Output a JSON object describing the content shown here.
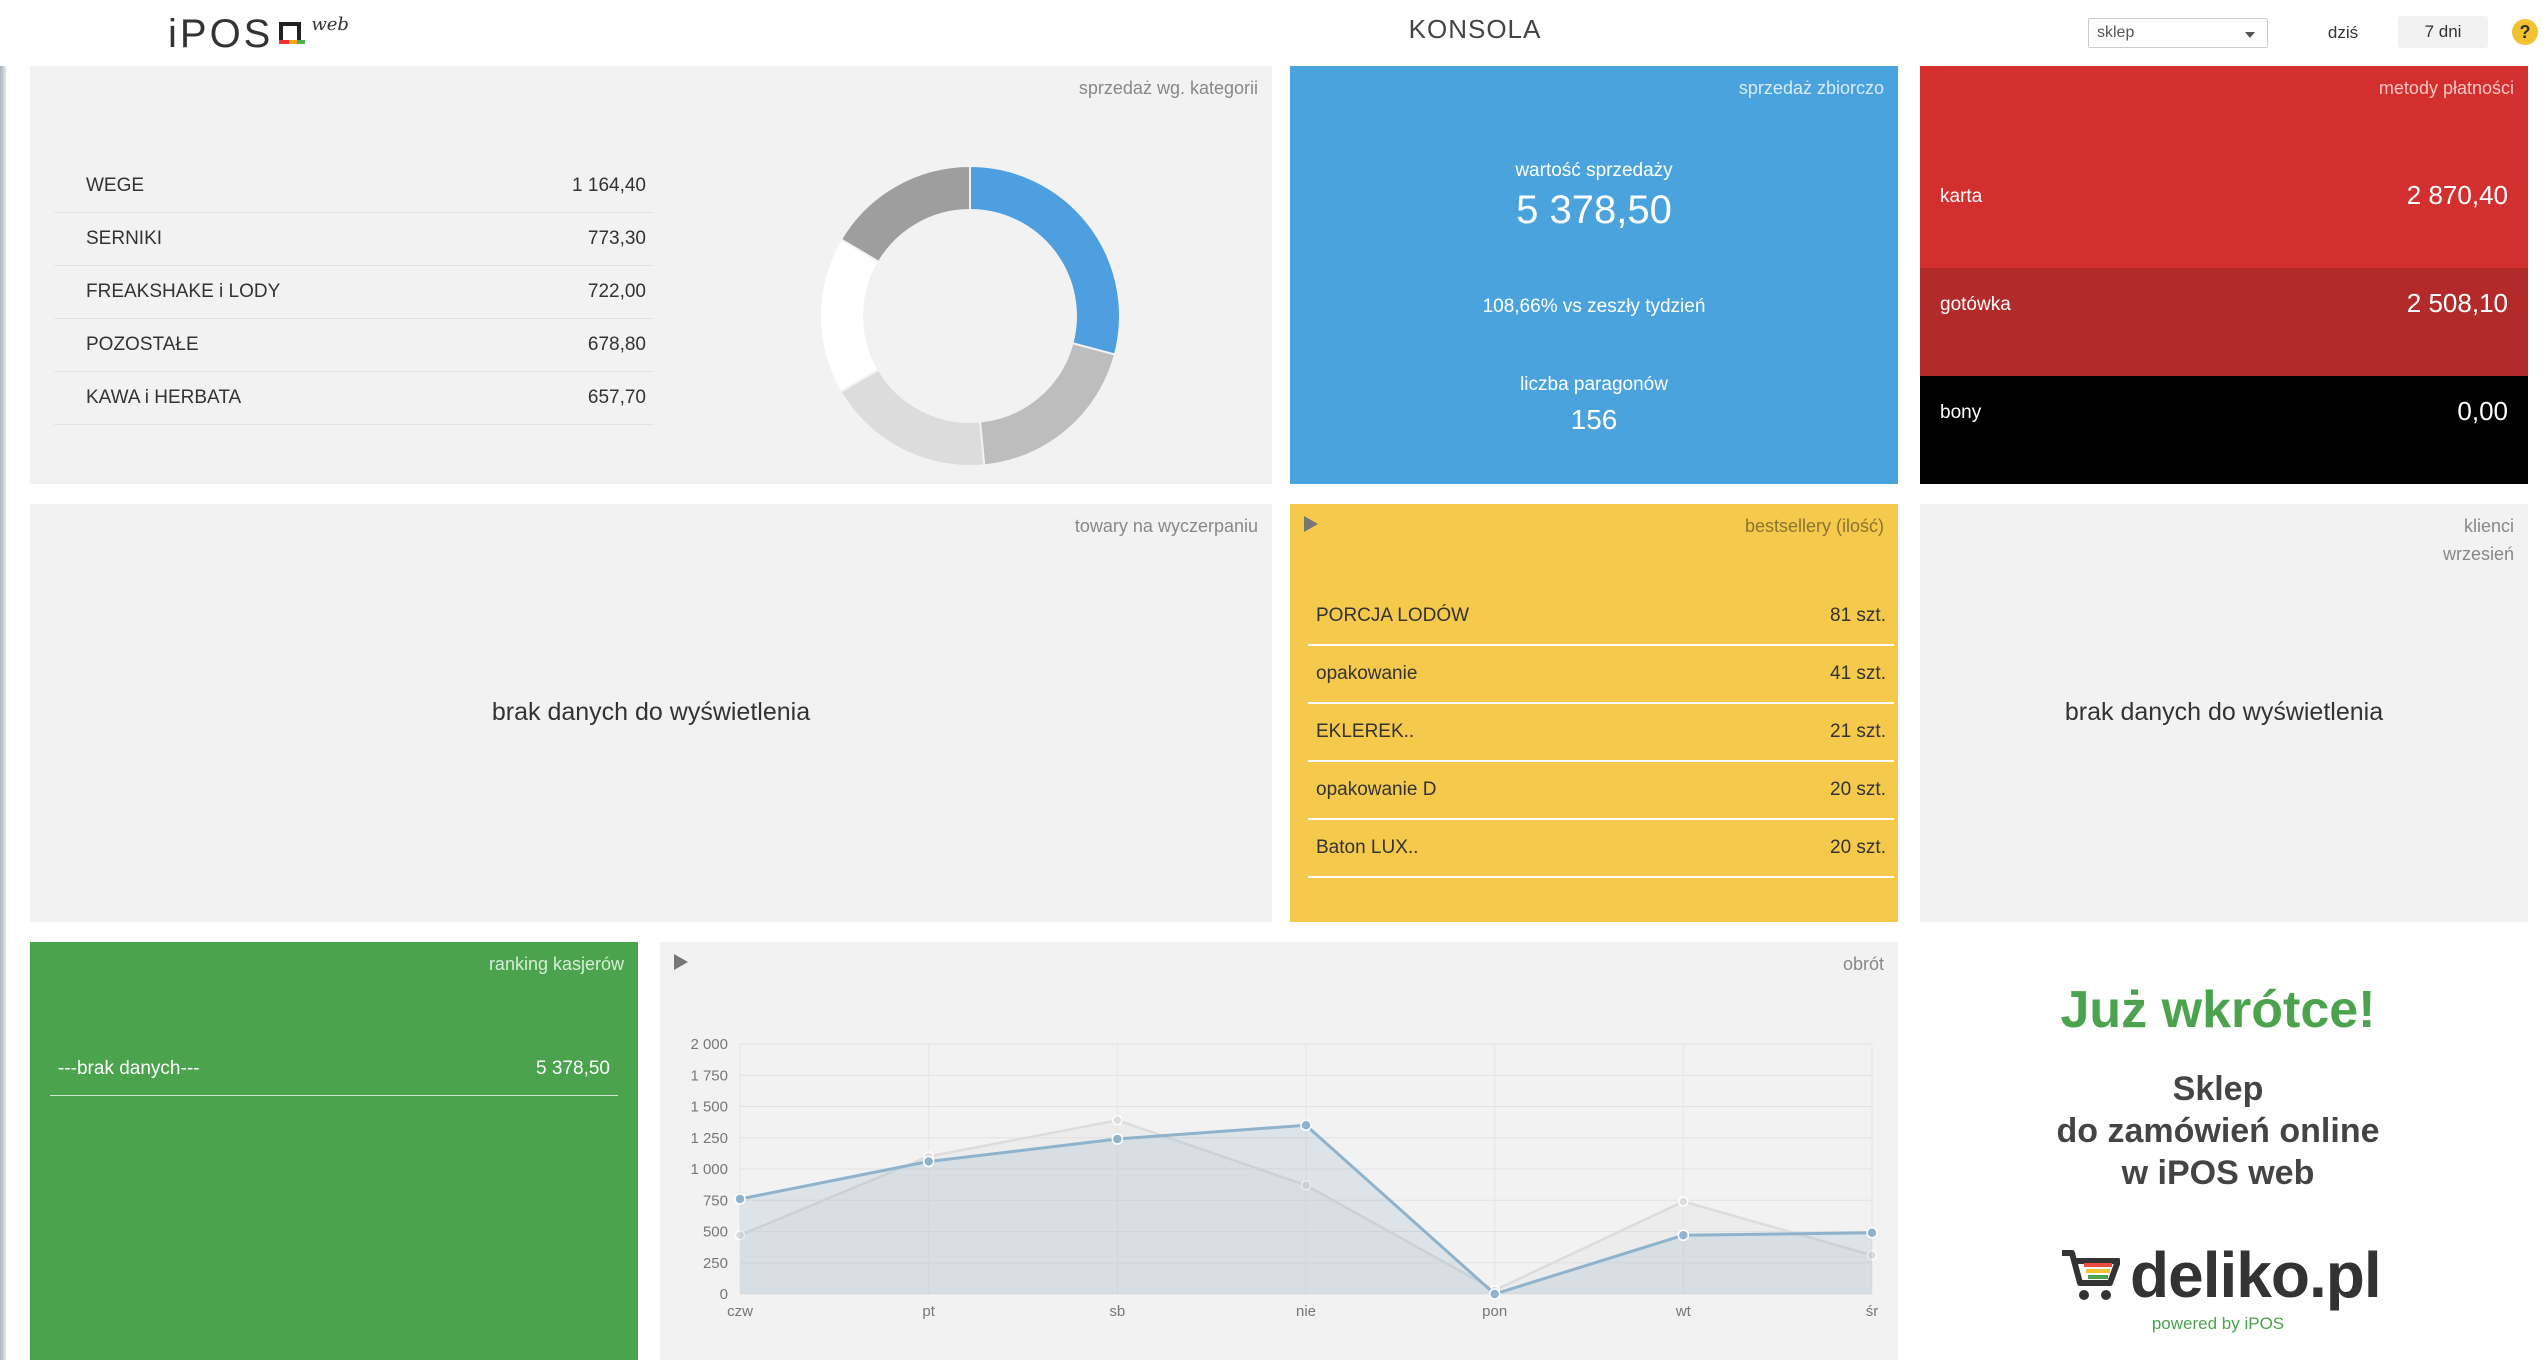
{
  "header": {
    "logo_text": "iPOS",
    "logo_suffix": "web",
    "title": "KONSOLA",
    "store_select": "sklep",
    "btn_today": "dziś",
    "btn_range": "7 dni",
    "help": "?"
  },
  "categories": {
    "title": "sprzedaż wg. kategorii",
    "rows": [
      {
        "name": "WEGE",
        "value": "1 164,40"
      },
      {
        "name": "SERNIKI",
        "value": "773,30"
      },
      {
        "name": "FREAKSHAKE i LODY",
        "value": "722,00"
      },
      {
        "name": "POZOSTAŁE",
        "value": "678,80"
      },
      {
        "name": "KAWA i HERBATA",
        "value": "657,70"
      }
    ],
    "donut_colors": [
      "#4d9fdf",
      "#bdbdbd",
      "#dcdcdc",
      "#ffffff",
      "#9e9e9e"
    ]
  },
  "summary": {
    "title": "sprzedaż zbiorczo",
    "sales_label": "wartość sprzedaży",
    "sales_value": "5 378,50",
    "compare": "108,66% vs zeszły tydzień",
    "receipts_label": "liczba paragonów",
    "receipts_value": "156"
  },
  "payments": {
    "title": "metody płatności",
    "rows": [
      {
        "name": "karta",
        "value": "2 870,40",
        "color": "#d32f2f"
      },
      {
        "name": "gotówka",
        "value": "2 508,10",
        "color": "#b22a2a"
      },
      {
        "name": "bony",
        "value": "0,00",
        "color": "#000000"
      }
    ]
  },
  "low_stock": {
    "title": "towary na wyczerpaniu",
    "empty": "brak danych do wyświetlenia"
  },
  "bestsellers": {
    "title": "bestsellery (ilość)",
    "rows": [
      {
        "name": "PORCJA LODÓW",
        "value": "81 szt."
      },
      {
        "name": "opakowanie",
        "value": "41 szt."
      },
      {
        "name": "EKLEREK..",
        "value": "21 szt."
      },
      {
        "name": "opakowanie D",
        "value": "20 szt."
      },
      {
        "name": "Baton LUX..",
        "value": "20 szt."
      }
    ]
  },
  "clients": {
    "title": "klienci",
    "subtitle": "wrzesień",
    "empty": "brak danych do wyświetlenia"
  },
  "cashiers": {
    "title": "ranking kasjerów",
    "rows": [
      {
        "name": "---brak danych---",
        "value": "5 378,50"
      }
    ]
  },
  "turnover": {
    "title": "obrót"
  },
  "chart_data": {
    "type": "area",
    "x": [
      "czw",
      "pt",
      "sb",
      "nie",
      "pon",
      "wt",
      "śr"
    ],
    "ylim": [
      0,
      2000
    ],
    "yticks": [
      "0",
      "250",
      "500",
      "750",
      "1 000",
      "1 250",
      "1 500",
      "1 750",
      "2 000"
    ],
    "series": [
      {
        "values": [
          760,
          1060,
          1240,
          1350,
          0,
          470,
          490
        ],
        "color": "#8fb3cc"
      },
      {
        "values": [
          470,
          1100,
          1390,
          870,
          30,
          740,
          310
        ],
        "color": "#dcdcdc"
      }
    ]
  },
  "promo": {
    "headline": "Już wkrótce!",
    "line1": "Sklep",
    "line2": "do zamówień online",
    "line3": "w iPOS web",
    "brand": "deliko.pl",
    "powered": "powered by iPOS"
  }
}
